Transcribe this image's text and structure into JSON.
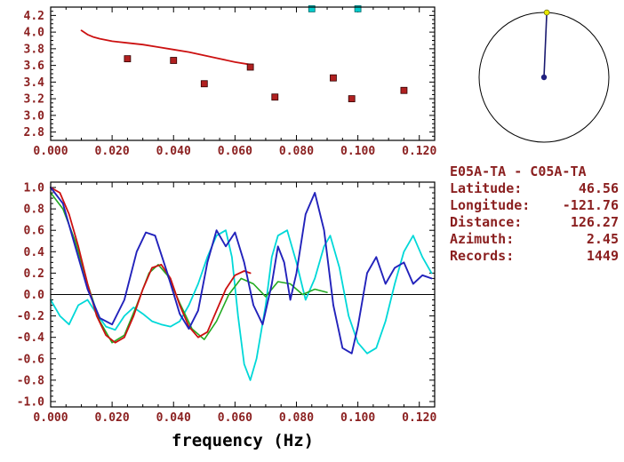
{
  "theme": {
    "text_color": "#8b2020",
    "axis_color": "#000000",
    "background": "#ffffff"
  },
  "info_panel": {
    "station_pair": "E05A-TA - C05A-TA",
    "rows": [
      {
        "label": "Latitude:",
        "value": "46.56"
      },
      {
        "label": "Longitude:",
        "value": "-121.76"
      },
      {
        "label": "Distance:",
        "value": "126.27"
      },
      {
        "label": "Azimuth:",
        "value": "2.45"
      },
      {
        "label": "Records:",
        "value": "1449"
      }
    ]
  },
  "chart_data": [
    {
      "id": "dispersion",
      "type": "line",
      "title": "",
      "xlabel": "",
      "ylabel": "",
      "xlim": [
        0,
        0.125
      ],
      "ylim": [
        2.7,
        4.3
      ],
      "xticks": [
        0,
        0.02,
        0.04,
        0.06,
        0.08,
        0.1,
        0.12
      ],
      "xtick_labels": [
        "0.000",
        "0.020",
        "0.040",
        "0.060",
        "0.080",
        "0.100",
        "0.120"
      ],
      "xminor_step": 0.005,
      "yticks": [
        2.8,
        3.0,
        3.2,
        3.4,
        3.6,
        3.8,
        4.0,
        4.2
      ],
      "ytick_labels": [
        "2.8",
        "3.0",
        "3.2",
        "3.4",
        "3.6",
        "3.8",
        "4.0",
        "4.2"
      ],
      "yminor_step": 0.05,
      "zero_line": false,
      "grid": false,
      "show_xtick_labels": true,
      "series": [
        {
          "name": "phase-velocity-curve",
          "type": "line",
          "color": "#cc1111",
          "width": 1.8,
          "points": [
            [
              0.01,
              4.02
            ],
            [
              0.012,
              3.97
            ],
            [
              0.014,
              3.94
            ],
            [
              0.016,
              3.92
            ],
            [
              0.02,
              3.89
            ],
            [
              0.025,
              3.87
            ],
            [
              0.03,
              3.85
            ],
            [
              0.035,
              3.82
            ],
            [
              0.04,
              3.79
            ],
            [
              0.045,
              3.76
            ],
            [
              0.05,
              3.72
            ],
            [
              0.055,
              3.68
            ],
            [
              0.06,
              3.64
            ],
            [
              0.065,
              3.61
            ]
          ]
        },
        {
          "name": "measurement-squares",
          "type": "scatter",
          "marker": "square",
          "color": "#b02020",
          "edge": "#300000",
          "size": 7,
          "points": [
            [
              0.025,
              3.68
            ],
            [
              0.04,
              3.66
            ],
            [
              0.05,
              3.38
            ],
            [
              0.065,
              3.58
            ],
            [
              0.073,
              3.22
            ],
            [
              0.092,
              3.45
            ],
            [
              0.098,
              3.2
            ],
            [
              0.115,
              3.3
            ]
          ]
        },
        {
          "name": "rejected-squares",
          "type": "scatter",
          "marker": "square",
          "color": "#00cccc",
          "edge": "#006666",
          "size": 7,
          "points": [
            [
              0.085,
              4.28
            ],
            [
              0.1,
              4.28
            ]
          ]
        }
      ]
    },
    {
      "id": "waveforms",
      "type": "line",
      "title": "",
      "xlabel": "frequency (Hz)",
      "ylabel": "",
      "xlim": [
        0,
        0.125
      ],
      "ylim": [
        -1.05,
        1.05
      ],
      "xticks": [
        0,
        0.02,
        0.04,
        0.06,
        0.08,
        0.1,
        0.12
      ],
      "xtick_labels": [
        "0.000",
        "0.020",
        "0.040",
        "0.060",
        "0.080",
        "0.100",
        "0.120"
      ],
      "xminor_step": 0.005,
      "yticks": [
        -1.0,
        -0.8,
        -0.6,
        -0.4,
        -0.2,
        0.0,
        0.2,
        0.4,
        0.6,
        0.8,
        1.0
      ],
      "ytick_labels": [
        "-1.0",
        "-0.8",
        "-0.6",
        "-0.4",
        "-0.2",
        "0.0",
        "0.2",
        "0.4",
        "0.6",
        "0.8",
        "1.0"
      ],
      "yminor_step": 0.05,
      "zero_line": true,
      "grid": false,
      "show_xtick_labels": true,
      "series": [
        {
          "name": "waveform-cyan",
          "type": "line",
          "color": "#00d8d8",
          "width": 1.8,
          "points": [
            [
              0.0,
              -0.05
            ],
            [
              0.003,
              -0.2
            ],
            [
              0.006,
              -0.28
            ],
            [
              0.009,
              -0.1
            ],
            [
              0.012,
              -0.05
            ],
            [
              0.015,
              -0.18
            ],
            [
              0.018,
              -0.3
            ],
            [
              0.021,
              -0.33
            ],
            [
              0.024,
              -0.2
            ],
            [
              0.027,
              -0.12
            ],
            [
              0.03,
              -0.18
            ],
            [
              0.033,
              -0.25
            ],
            [
              0.036,
              -0.28
            ],
            [
              0.039,
              -0.3
            ],
            [
              0.042,
              -0.25
            ],
            [
              0.045,
              -0.1
            ],
            [
              0.048,
              0.1
            ],
            [
              0.051,
              0.35
            ],
            [
              0.054,
              0.55
            ],
            [
              0.057,
              0.6
            ],
            [
              0.059,
              0.35
            ],
            [
              0.061,
              -0.2
            ],
            [
              0.063,
              -0.65
            ],
            [
              0.065,
              -0.8
            ],
            [
              0.067,
              -0.6
            ],
            [
              0.07,
              -0.1
            ],
            [
              0.072,
              0.35
            ],
            [
              0.074,
              0.55
            ],
            [
              0.077,
              0.6
            ],
            [
              0.08,
              0.3
            ],
            [
              0.083,
              -0.05
            ],
            [
              0.086,
              0.15
            ],
            [
              0.089,
              0.45
            ],
            [
              0.091,
              0.55
            ],
            [
              0.094,
              0.25
            ],
            [
              0.097,
              -0.2
            ],
            [
              0.1,
              -0.45
            ],
            [
              0.103,
              -0.55
            ],
            [
              0.106,
              -0.5
            ],
            [
              0.109,
              -0.25
            ],
            [
              0.112,
              0.1
            ],
            [
              0.115,
              0.4
            ],
            [
              0.118,
              0.55
            ],
            [
              0.121,
              0.35
            ],
            [
              0.124,
              0.2
            ]
          ]
        },
        {
          "name": "waveform-green",
          "type": "line",
          "color": "#22aa22",
          "width": 1.6,
          "points": [
            [
              0.0,
              0.95
            ],
            [
              0.004,
              0.8
            ],
            [
              0.008,
              0.5
            ],
            [
              0.012,
              0.1
            ],
            [
              0.016,
              -0.25
            ],
            [
              0.02,
              -0.45
            ],
            [
              0.024,
              -0.38
            ],
            [
              0.028,
              -0.1
            ],
            [
              0.032,
              0.2
            ],
            [
              0.035,
              0.28
            ],
            [
              0.038,
              0.18
            ],
            [
              0.042,
              -0.08
            ],
            [
              0.046,
              -0.32
            ],
            [
              0.05,
              -0.42
            ],
            [
              0.054,
              -0.25
            ],
            [
              0.058,
              0.0
            ],
            [
              0.062,
              0.15
            ],
            [
              0.066,
              0.1
            ],
            [
              0.07,
              -0.02
            ],
            [
              0.074,
              0.12
            ],
            [
              0.078,
              0.1
            ],
            [
              0.082,
              0.0
            ],
            [
              0.086,
              0.05
            ],
            [
              0.09,
              0.02
            ]
          ]
        },
        {
          "name": "waveform-red",
          "type": "line",
          "color": "#cc1111",
          "width": 1.8,
          "points": [
            [
              0.0,
              1.0
            ],
            [
              0.003,
              0.95
            ],
            [
              0.006,
              0.75
            ],
            [
              0.009,
              0.45
            ],
            [
              0.012,
              0.1
            ],
            [
              0.015,
              -0.2
            ],
            [
              0.018,
              -0.38
            ],
            [
              0.021,
              -0.45
            ],
            [
              0.024,
              -0.4
            ],
            [
              0.027,
              -0.2
            ],
            [
              0.03,
              0.05
            ],
            [
              0.033,
              0.25
            ],
            [
              0.036,
              0.28
            ],
            [
              0.039,
              0.15
            ],
            [
              0.042,
              -0.1
            ],
            [
              0.045,
              -0.3
            ],
            [
              0.048,
              -0.4
            ],
            [
              0.051,
              -0.35
            ],
            [
              0.054,
              -0.15
            ],
            [
              0.057,
              0.05
            ],
            [
              0.06,
              0.18
            ],
            [
              0.063,
              0.22
            ],
            [
              0.065,
              0.2
            ]
          ]
        },
        {
          "name": "waveform-blue",
          "type": "line",
          "color": "#2222bb",
          "width": 1.9,
          "points": [
            [
              0.0,
              1.0
            ],
            [
              0.004,
              0.85
            ],
            [
              0.008,
              0.45
            ],
            [
              0.012,
              0.05
            ],
            [
              0.016,
              -0.22
            ],
            [
              0.02,
              -0.28
            ],
            [
              0.024,
              -0.05
            ],
            [
              0.028,
              0.4
            ],
            [
              0.031,
              0.58
            ],
            [
              0.034,
              0.55
            ],
            [
              0.038,
              0.2
            ],
            [
              0.042,
              -0.18
            ],
            [
              0.045,
              -0.32
            ],
            [
              0.048,
              -0.15
            ],
            [
              0.051,
              0.3
            ],
            [
              0.054,
              0.6
            ],
            [
              0.057,
              0.45
            ],
            [
              0.06,
              0.58
            ],
            [
              0.063,
              0.3
            ],
            [
              0.066,
              -0.1
            ],
            [
              0.069,
              -0.28
            ],
            [
              0.072,
              0.1
            ],
            [
              0.074,
              0.45
            ],
            [
              0.076,
              0.3
            ],
            [
              0.078,
              -0.05
            ],
            [
              0.08,
              0.2
            ],
            [
              0.083,
              0.75
            ],
            [
              0.086,
              0.95
            ],
            [
              0.089,
              0.6
            ],
            [
              0.092,
              -0.1
            ],
            [
              0.095,
              -0.5
            ],
            [
              0.098,
              -0.55
            ],
            [
              0.1,
              -0.3
            ],
            [
              0.103,
              0.2
            ],
            [
              0.106,
              0.35
            ],
            [
              0.109,
              0.1
            ],
            [
              0.112,
              0.25
            ],
            [
              0.115,
              0.3
            ],
            [
              0.118,
              0.1
            ],
            [
              0.121,
              0.18
            ],
            [
              0.124,
              0.15
            ]
          ]
        }
      ]
    },
    {
      "id": "azimuth-circle",
      "type": "azimuth",
      "azimuth_deg": 2.45,
      "circle_color": "#000000",
      "line_color": "#1a1a70",
      "center_dot_color": "#202080",
      "end_dot_color": "#e8e800"
    }
  ]
}
